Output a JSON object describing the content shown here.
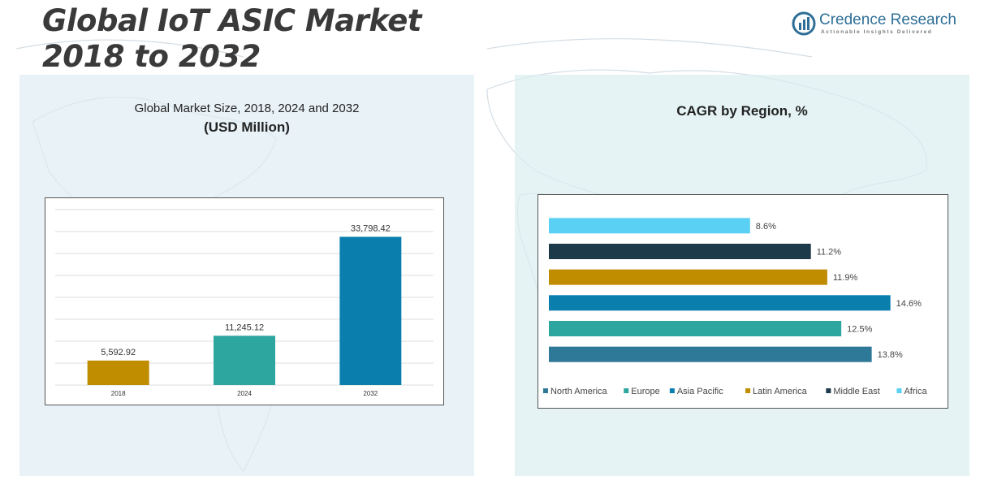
{
  "page": {
    "title_lines": [
      "Global IoT ASIC Market",
      "2018 to 2032"
    ],
    "brand_name": "Credence Research",
    "brand_tagline": "Actionable Insights Delivered"
  },
  "left_panel": {
    "subtitle": "Global Market Size, 2018, 2024 and 2032",
    "unit_label": "(USD Million)"
  },
  "right_panel": {
    "title": "CAGR by Region, %"
  },
  "colors": {
    "brand": "#2f6f97",
    "title_text": "#3a3a3a"
  },
  "chart_data": [
    {
      "type": "bar",
      "orientation": "vertical",
      "title": "Global Market Size, 2018, 2024 and 2032",
      "ylabel": "(USD Million)",
      "categories": [
        "2018",
        "2024",
        "2032"
      ],
      "values": [
        5592.92,
        11245.12,
        33798.42
      ],
      "value_labels": [
        "5,592.92",
        "11,245.12",
        "33,798.42"
      ],
      "bar_colors": [
        "#c08c00",
        "#2ea6a0",
        "#0a7fae"
      ],
      "ylim": [
        0,
        40000
      ],
      "grid": true,
      "legend": "none"
    },
    {
      "type": "bar",
      "orientation": "horizontal",
      "title": "CAGR by Region, %",
      "categories": [
        "Africa",
        "Middle East",
        "Latin America",
        "Asia Pacific",
        "Europe",
        "North America"
      ],
      "values": [
        8.6,
        11.2,
        11.9,
        14.6,
        12.5,
        13.8
      ],
      "value_labels": [
        "8.6%",
        "11.2%",
        "11.9%",
        "14.6%",
        "12.5%",
        "13.8%"
      ],
      "bar_colors": [
        "#5bd0f5",
        "#1c3a4a",
        "#c08c00",
        "#0a7fae",
        "#2ea6a0",
        "#2e7898"
      ],
      "xlim": [
        0,
        16
      ],
      "grid": false,
      "legend": "bottom",
      "legend_entries": [
        {
          "name": "North America",
          "color": "#2e7898"
        },
        {
          "name": "Europe",
          "color": "#2ea6a0"
        },
        {
          "name": "Asia Pacific",
          "color": "#0a7fae"
        },
        {
          "name": "Latin America",
          "color": "#c08c00"
        },
        {
          "name": "Middle East",
          "color": "#1c3a4a"
        },
        {
          "name": "Africa",
          "color": "#5bd0f5"
        }
      ]
    }
  ]
}
